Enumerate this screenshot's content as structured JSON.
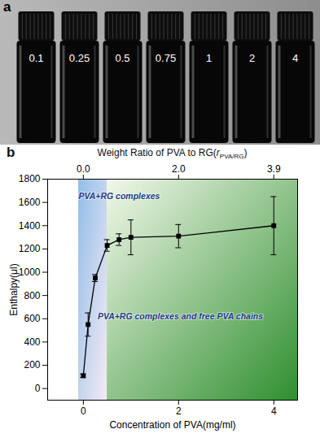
{
  "chart_data": {
    "type": "line",
    "panel_label": "b",
    "x_label": "Concentration of PVA(mg/ml)",
    "y_label": "Enthalpy(μl)",
    "x": [
      0,
      0.1,
      0.25,
      0.5,
      0.75,
      1,
      2,
      4
    ],
    "values": [
      110,
      550,
      950,
      1230,
      1280,
      1300,
      1310,
      1400
    ],
    "errors": [
      15,
      100,
      30,
      50,
      50,
      150,
      100,
      250
    ],
    "color": "#000000",
    "marker": "square",
    "line_style": "solid",
    "xlim": [
      -0.75,
      4.5
    ],
    "xticks": [
      0,
      2,
      4
    ],
    "ylim": [
      -100,
      1800
    ],
    "yticks": [
      0,
      200,
      400,
      600,
      800,
      1000,
      1200,
      1400,
      1600,
      1800
    ],
    "grid": false,
    "top_axis": {
      "label_parts": [
        {
          "text": "Weight Ratio of PVA to RG(",
          "style": "normal"
        },
        {
          "text": "r",
          "style": "italic"
        },
        {
          "text": "PVA/RG",
          "style": "subscript"
        },
        {
          "text": ")",
          "style": "normal"
        }
      ],
      "ticks": [
        {
          "value": 0,
          "label": "0.0"
        },
        {
          "value": 2,
          "label": "2.0"
        },
        {
          "value": 4,
          "label": "3.9"
        }
      ]
    },
    "regions": [
      {
        "x0": -0.1,
        "x1": 0.5,
        "colors": [
          "#92bde9",
          "#f4ebf3"
        ]
      },
      {
        "x0": 0.5,
        "x1": 4.5,
        "colors": [
          "#f2f8ea",
          "#2f8f2f"
        ]
      }
    ],
    "annotations": [
      {
        "text": "PVA+RG complexes",
        "x": -0.1,
        "y": 1650,
        "color": "#1f3c88"
      },
      {
        "text": "PVA+RG complexes and free PVA chains",
        "x": 0.3,
        "y": 620,
        "color": "#1f3c88"
      }
    ]
  },
  "photo": {
    "panel_label": "a",
    "labels": [
      "0.1",
      "0.25",
      "0.5",
      "0.75",
      "1",
      "2",
      "4"
    ]
  }
}
